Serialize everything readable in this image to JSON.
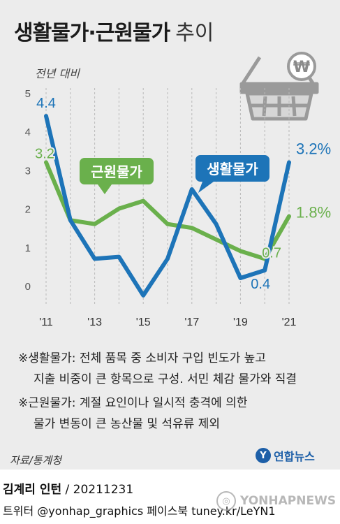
{
  "header": {
    "title": "생활물가·근원물가",
    "subtitle": "추이",
    "unit_label": "전년 대비"
  },
  "chart_data": {
    "type": "line",
    "x": [
      2011,
      2012,
      2013,
      2014,
      2015,
      2016,
      2017,
      2018,
      2019,
      2020,
      2021
    ],
    "x_tick_labels": [
      "'11",
      "'13",
      "'15",
      "'17",
      "'19",
      "'21"
    ],
    "x_tick_values": [
      2011,
      2013,
      2015,
      2017,
      2019,
      2021
    ],
    "ylim": [
      0,
      5
    ],
    "y_ticks": [
      0,
      1,
      2,
      3,
      4,
      5
    ],
    "grid": "vertical-dashed",
    "series": [
      {
        "name": "생활물가",
        "color": "#1d74b8",
        "values": [
          4.4,
          1.7,
          0.7,
          0.75,
          -0.25,
          0.7,
          2.5,
          1.6,
          0.2,
          0.4,
          3.2
        ],
        "labels": [
          {
            "x": 2011,
            "text": "4.4",
            "pos": "above"
          },
          {
            "x": 2020,
            "text": "0.4",
            "pos": "below"
          },
          {
            "x": 2021,
            "text": "3.2%",
            "pos": "right"
          }
        ]
      },
      {
        "name": "근원물가",
        "color": "#6ab04c",
        "values": [
          3.2,
          1.7,
          1.6,
          2.0,
          2.2,
          1.6,
          1.5,
          1.2,
          0.9,
          0.7,
          1.8
        ],
        "labels": [
          {
            "x": 2011,
            "text": "3.2",
            "pos": "left-above"
          },
          {
            "x": 2020,
            "text": "0.7",
            "pos": "right"
          },
          {
            "x": 2021,
            "text": "1.8%",
            "pos": "right"
          }
        ]
      }
    ],
    "callouts": [
      {
        "series": "근원물가",
        "text": "근원물가"
      },
      {
        "series": "생활물가",
        "text": "생활물가"
      }
    ]
  },
  "notes": [
    {
      "lines": [
        "※생활물가: 전체 품목 중 소비자 구입 빈도가 높고",
        "지출 비중이 큰 항목으로 구성. 서민 체감 물가와 직결"
      ]
    },
    {
      "lines": [
        "※근원물가: 계절 요인이나 일시적 충격에 의한",
        "물가 변동이 큰 농산물 및 석유류 제외"
      ]
    }
  ],
  "source": "자료/통계청",
  "logo": {
    "mark": "Y",
    "text": "연합뉴스"
  },
  "credit": {
    "author": "김계리 인턴",
    "date": "/ 20211231"
  },
  "social": "트위터 @yonhap_graphics  페이스북 tuney.kr/LeYN1",
  "watermark": "YONHAPNEWS",
  "icons": [
    "shopping-basket-icon",
    "won-sign-icon"
  ]
}
